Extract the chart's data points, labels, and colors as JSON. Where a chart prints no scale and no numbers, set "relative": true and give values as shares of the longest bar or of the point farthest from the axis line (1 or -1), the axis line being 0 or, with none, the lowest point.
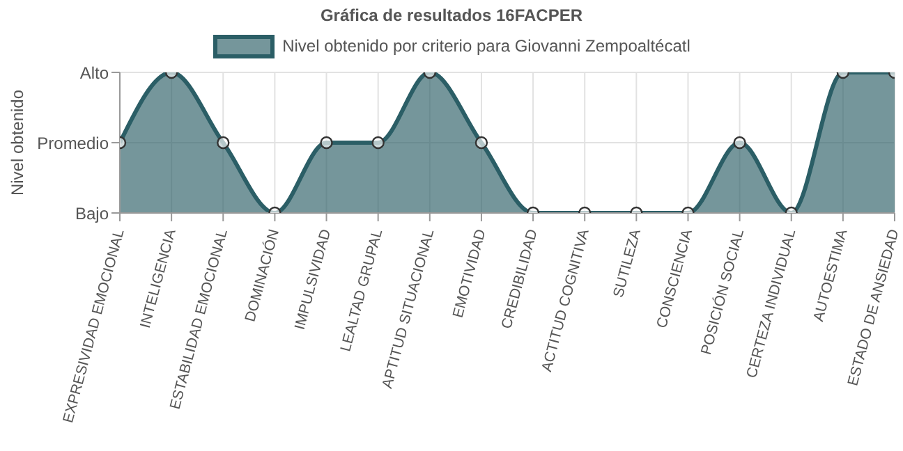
{
  "chart_data": {
    "type": "area",
    "title": "Gráfica de resultados 16FACPER",
    "ylabel": "Nivel obtenido",
    "categories": [
      "EXPRESIVIDAD EMOCIONAL",
      "INTELIGENCIA",
      "ESTABILIDAD EMOCIONAL",
      "DOMINACIÓN",
      "IMPULSIVIDAD",
      "LEALTAD GRUPAL",
      "APTITUD SITUACIONAL",
      "EMOTIVIDAD",
      "CREDIBILIDAD",
      "ACTITUD COGNITIVA",
      "SUTILEZA",
      "CONSCIENCIA",
      "POSICIÓN SOCIAL",
      "CERTEZA INDIVIDUAL",
      "AUTOESTIMA",
      "ESTADO DE ANSIEDAD"
    ],
    "y_categories": [
      "Alto",
      "Promedio",
      "Bajo"
    ],
    "series": [
      {
        "name": "Nivel obtenido por criterio para Giovanni Zempoaltécatl",
        "color": "#2b5e66",
        "values": [
          0.5,
          1,
          0.5,
          0,
          0.5,
          0.5,
          1,
          0.5,
          0,
          0,
          0,
          0,
          0.5,
          0,
          1,
          1
        ]
      }
    ],
    "relative": true,
    "grid": true,
    "legend": "top",
    "marker": "circle",
    "line_style": "solid"
  }
}
